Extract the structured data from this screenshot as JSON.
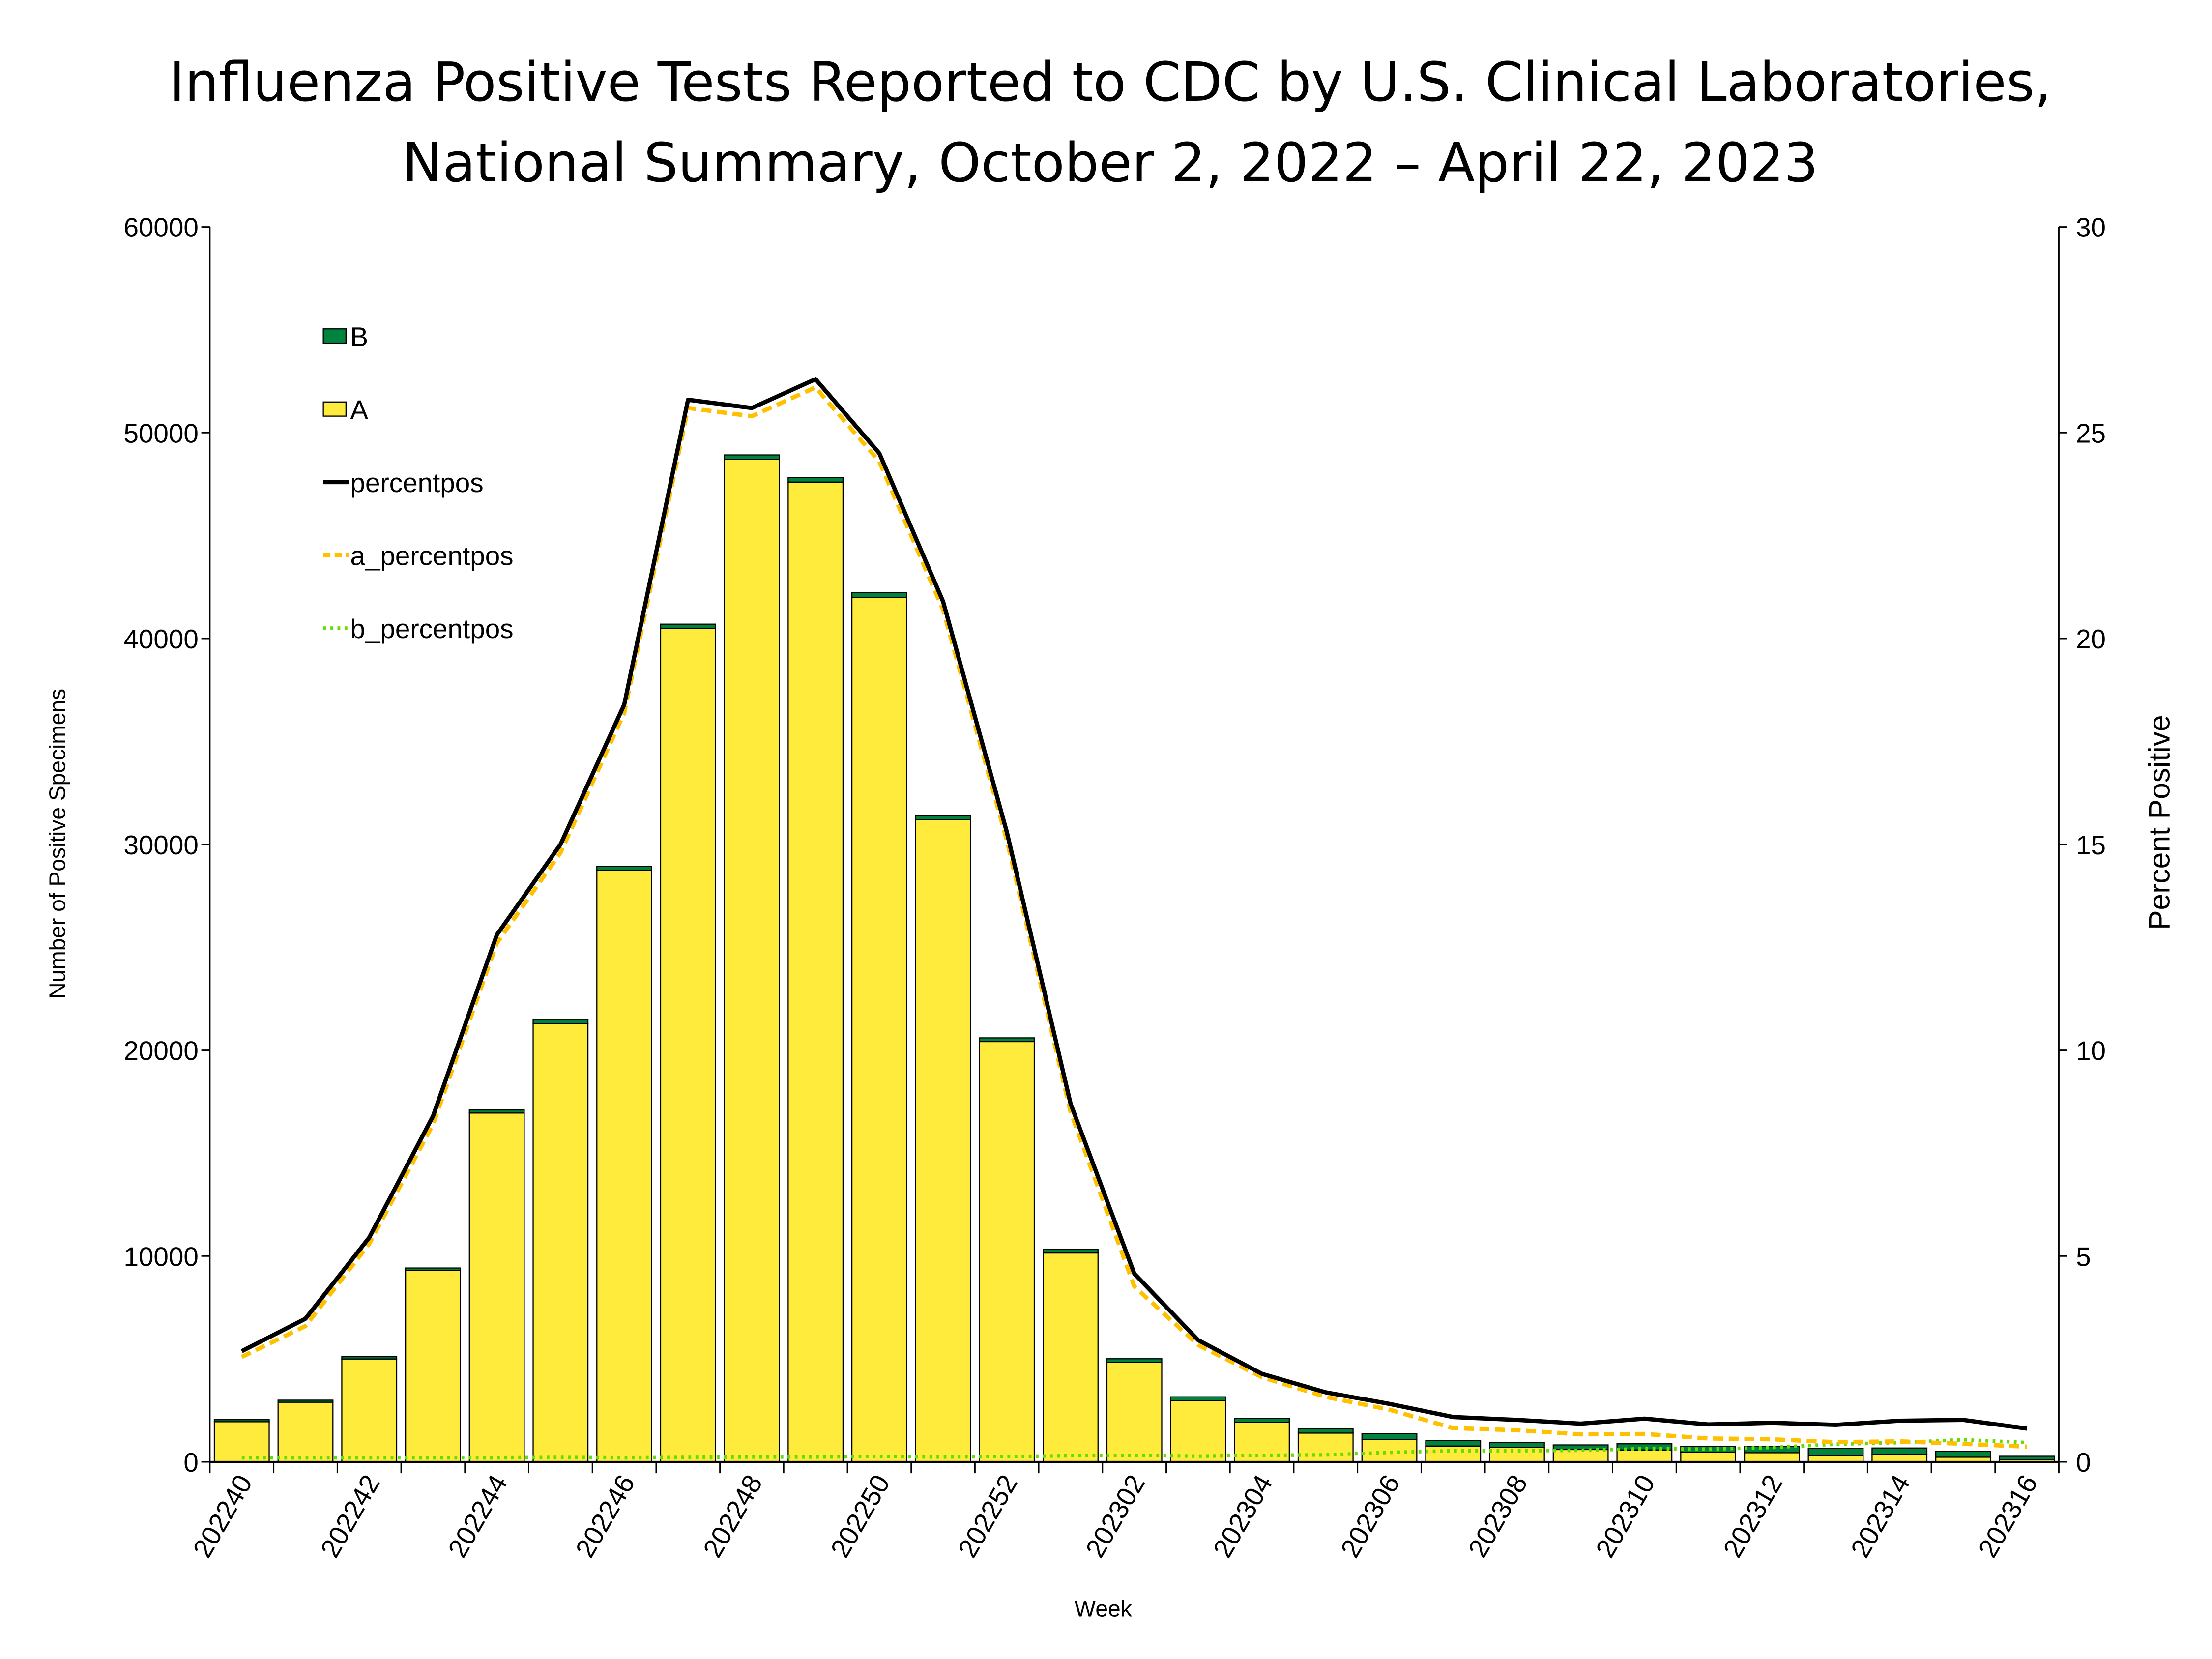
{
  "chart_data": {
    "type": "bar",
    "title": [
      "Influenza Positive Tests Reported to CDC by U.S. Clinical Laboratories,",
      "National Summary, October 2, 2022 – April 22, 2023"
    ],
    "xlabel": "Week",
    "ylabel": "Number of Positive Specimens",
    "y2label": "Percent Positive",
    "ylim": [
      0,
      60000
    ],
    "y2lim": [
      0,
      30
    ],
    "yticks": [
      0,
      10000,
      20000,
      30000,
      40000,
      50000,
      60000
    ],
    "y2ticks": [
      0,
      5,
      10,
      15,
      20,
      25,
      30
    ],
    "legend_position": "top-left",
    "categories": [
      "202240",
      "202241",
      "202242",
      "202243",
      "202244",
      "202245",
      "202246",
      "202247",
      "202248",
      "202249",
      "202250",
      "202251",
      "202252",
      "202301",
      "202302",
      "202303",
      "202304",
      "202305",
      "202306",
      "202307",
      "202308",
      "202309",
      "202310",
      "202311",
      "202312",
      "202313",
      "202314",
      "202315",
      "202316"
    ],
    "xtick_labels": [
      "202240",
      "202242",
      "202244",
      "202246",
      "202248",
      "202250",
      "202252",
      "202302",
      "202304",
      "202306",
      "202308",
      "202310",
      "202312",
      "202314",
      "202316"
    ],
    "series": [
      {
        "name": "B",
        "kind": "bar",
        "color": "#00843D",
        "values": [
          100,
          100,
          110,
          120,
          150,
          200,
          180,
          200,
          220,
          220,
          230,
          200,
          180,
          170,
          170,
          190,
          190,
          210,
          290,
          265,
          230,
          225,
          300,
          285,
          315,
          345,
          315,
          285,
          170
        ]
      },
      {
        "name": "A",
        "kind": "bar",
        "color": "#FFEB3B",
        "values": [
          1950,
          2900,
          5000,
          9300,
          16950,
          21300,
          28750,
          40500,
          48700,
          47600,
          42000,
          31200,
          20420,
          10150,
          4840,
          2970,
          1930,
          1400,
          1090,
          770,
          710,
          600,
          580,
          465,
          445,
          315,
          360,
          230,
          105
        ]
      },
      {
        "name": "percentpos",
        "kind": "line",
        "color": "#000000",
        "dash": "solid",
        "values": [
          2.69,
          3.48,
          5.45,
          8.4,
          12.8,
          15.0,
          18.4,
          25.8,
          25.6,
          26.3,
          24.5,
          20.9,
          15.3,
          8.7,
          4.57,
          2.96,
          2.14,
          1.69,
          1.41,
          1.09,
          1.02,
          0.93,
          1.05,
          0.91,
          0.95,
          0.9,
          1.0,
          1.02,
          0.81
        ]
      },
      {
        "name": "a_percentpos",
        "kind": "line",
        "color": "#FFC000",
        "dash": "dashed",
        "values": [
          2.55,
          3.3,
          5.3,
          8.2,
          12.6,
          14.8,
          18.2,
          25.6,
          25.4,
          26.1,
          24.3,
          20.7,
          15.1,
          8.5,
          4.26,
          2.84,
          2.06,
          1.58,
          1.27,
          0.82,
          0.77,
          0.67,
          0.68,
          0.57,
          0.55,
          0.48,
          0.5,
          0.44,
          0.37
        ]
      },
      {
        "name": "b_percentpos",
        "kind": "line",
        "color": "#66DD00",
        "dash": "dotted",
        "values": [
          0.1,
          0.1,
          0.1,
          0.1,
          0.1,
          0.11,
          0.1,
          0.11,
          0.12,
          0.12,
          0.13,
          0.12,
          0.13,
          0.15,
          0.16,
          0.14,
          0.16,
          0.17,
          0.23,
          0.27,
          0.27,
          0.28,
          0.32,
          0.31,
          0.35,
          0.43,
          0.47,
          0.54,
          0.47
        ]
      }
    ]
  }
}
